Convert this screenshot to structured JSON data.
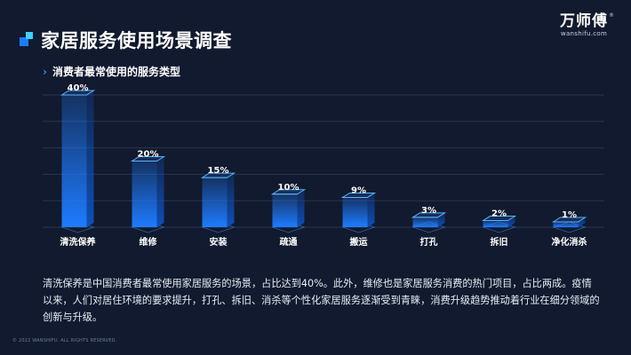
{
  "header": {
    "title": "家居服务使用场景调查",
    "subtitle": "消费者最常使用的服务类型"
  },
  "brand": {
    "name": "万师傅",
    "url": "wanshifu.com",
    "reg": "®"
  },
  "chart_data": {
    "type": "bar",
    "categories": [
      "清洗保养",
      "维修",
      "安装",
      "疏通",
      "搬运",
      "打孔",
      "拆旧",
      "净化消杀"
    ],
    "values": [
      40,
      20,
      15,
      10,
      9,
      3,
      2,
      1
    ],
    "value_labels": [
      "40%",
      "20%",
      "15%",
      "10%",
      "9%",
      "3%",
      "2%",
      "1%"
    ],
    "ylim": [
      0,
      40
    ],
    "grid": true,
    "bar_color": "#1e7bff",
    "bar_color_light": "#56b4ff"
  },
  "summary": "清洗保养是中国消费者最常使用家居服务的场景，占比达到40%。此外，维修也是家居服务消费的热门项目，占比两成。疫情以来，人们对居住环境的要求提升，打孔、拆旧、消杀等个性化家居服务逐渐受到青睐，消费升级趋势推动着行业在细分领域的创新与升级。",
  "footer": "© 2022 WANSHIFU. ALL RIGHTS RESERVED."
}
